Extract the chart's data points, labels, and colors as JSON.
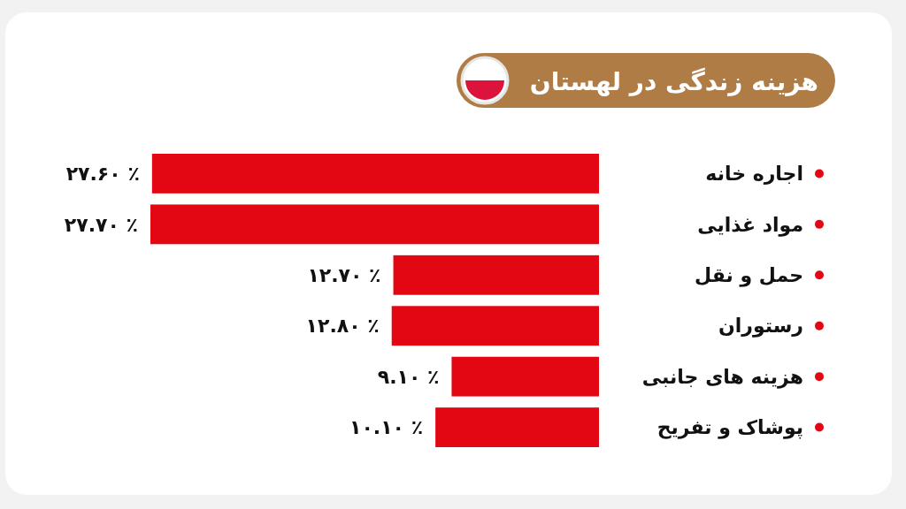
{
  "chart_data": {
    "type": "bar",
    "orientation": "horizontal",
    "title": "هزینه زندگی در لهستان",
    "categories": [
      "اجاره خانه",
      "مواد غذایی",
      "حمل و نقل",
      "رستوران",
      "هزینه های جانبی",
      "پوشاک و تفریح"
    ],
    "values": [
      27.6,
      27.7,
      12.7,
      12.8,
      9.1,
      10.1
    ],
    "value_labels": [
      "٪ ۲۷.۶۰",
      "٪ ۲۷.۷۰",
      "٪ ۱۲.۷۰",
      "٪ ۱۲.۸۰",
      "٪ ۹.۱۰",
      "٪ ۱۰.۱۰"
    ],
    "color": "#e30613",
    "grid": false
  }
}
